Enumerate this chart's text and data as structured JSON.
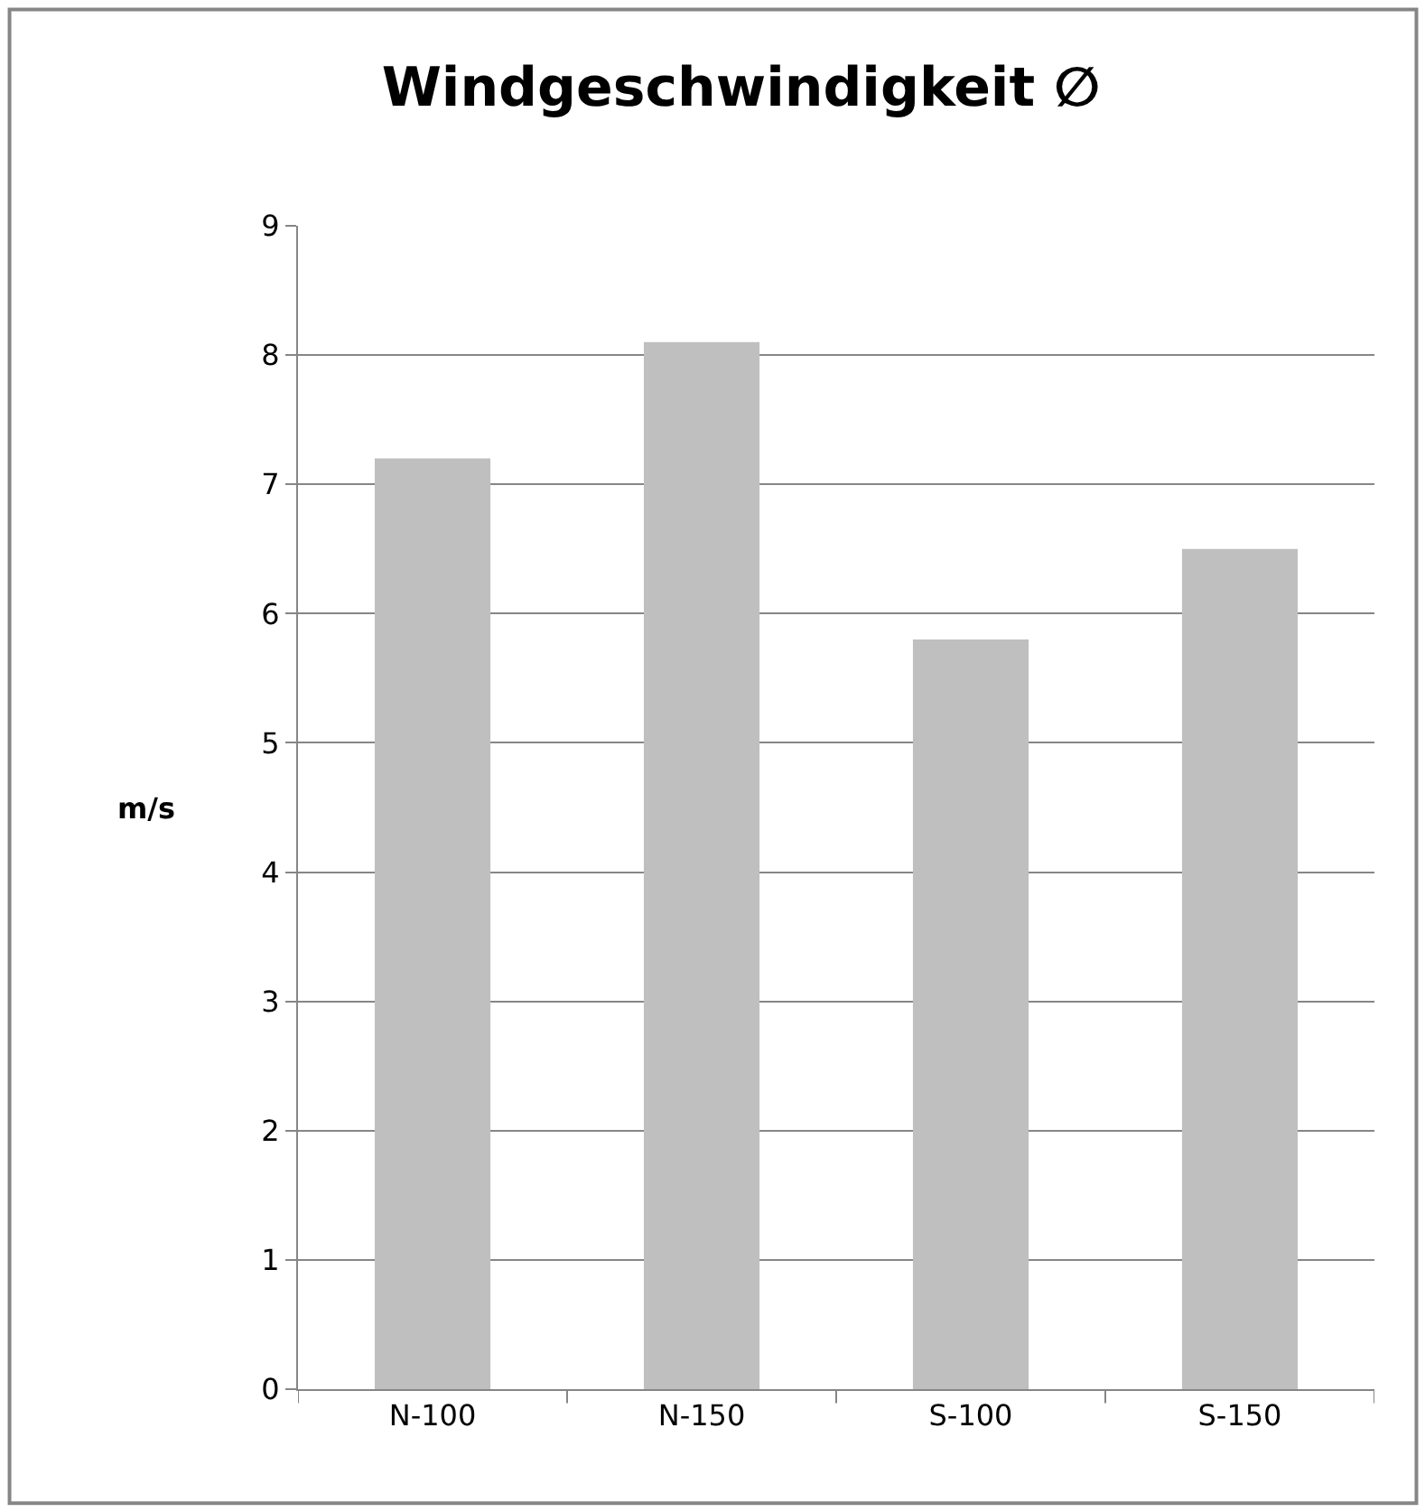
{
  "chart_data": {
    "type": "bar",
    "title": "Windgeschwindigkeit ∅",
    "ylabel": "m/s",
    "categories": [
      "N-100",
      "N-150",
      "S-100",
      "S-150"
    ],
    "values": [
      7.2,
      8.1,
      5.8,
      6.5
    ],
    "color": "#bfbfbf",
    "ylim": [
      0,
      9
    ],
    "yticks": [
      0,
      1,
      2,
      3,
      4,
      5,
      6,
      7,
      8,
      9
    ],
    "grid": "y",
    "legend": false
  }
}
